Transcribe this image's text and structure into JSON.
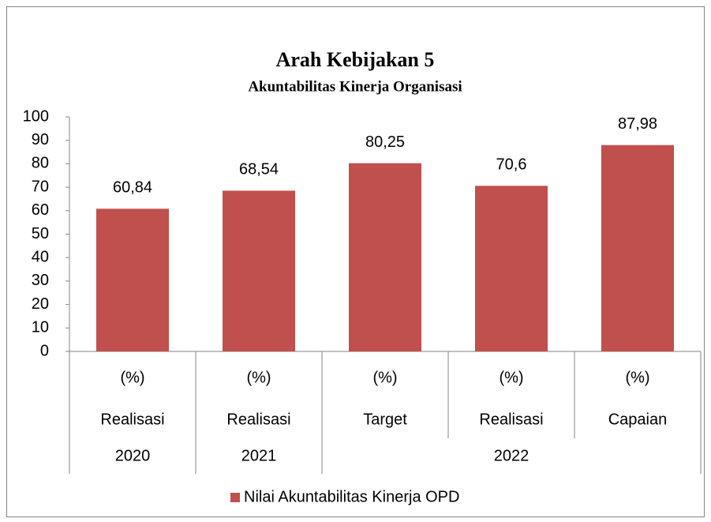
{
  "chart_data": {
    "type": "bar",
    "title": "Arah Kebijakan 5",
    "subtitle": "Akuntabilitas Kinerja Organisasi",
    "categories": [
      "(%)",
      "(%)",
      "(%)",
      "(%)",
      "(%)"
    ],
    "subcategories": [
      "Realisasi",
      "Realisasi",
      "Target",
      "Realisasi",
      "Capaian"
    ],
    "groups": [
      {
        "label": "2020",
        "span": 1
      },
      {
        "label": "2021",
        "span": 1
      },
      {
        "label": "2022",
        "span": 3
      }
    ],
    "series": [
      {
        "name": "Nilai Akuntabilitas Kinerja OPD",
        "color": "#c0504d",
        "values": [
          60.84,
          68.54,
          80.25,
          70.6,
          87.98
        ],
        "value_labels": [
          "60,84",
          "68,54",
          "80,25",
          "70,6",
          "87,98"
        ]
      }
    ],
    "ylim": [
      0,
      100
    ],
    "yticks": [
      0,
      10,
      20,
      30,
      40,
      50,
      60,
      70,
      80,
      90,
      100
    ],
    "grid": false,
    "legend": "bottom"
  }
}
